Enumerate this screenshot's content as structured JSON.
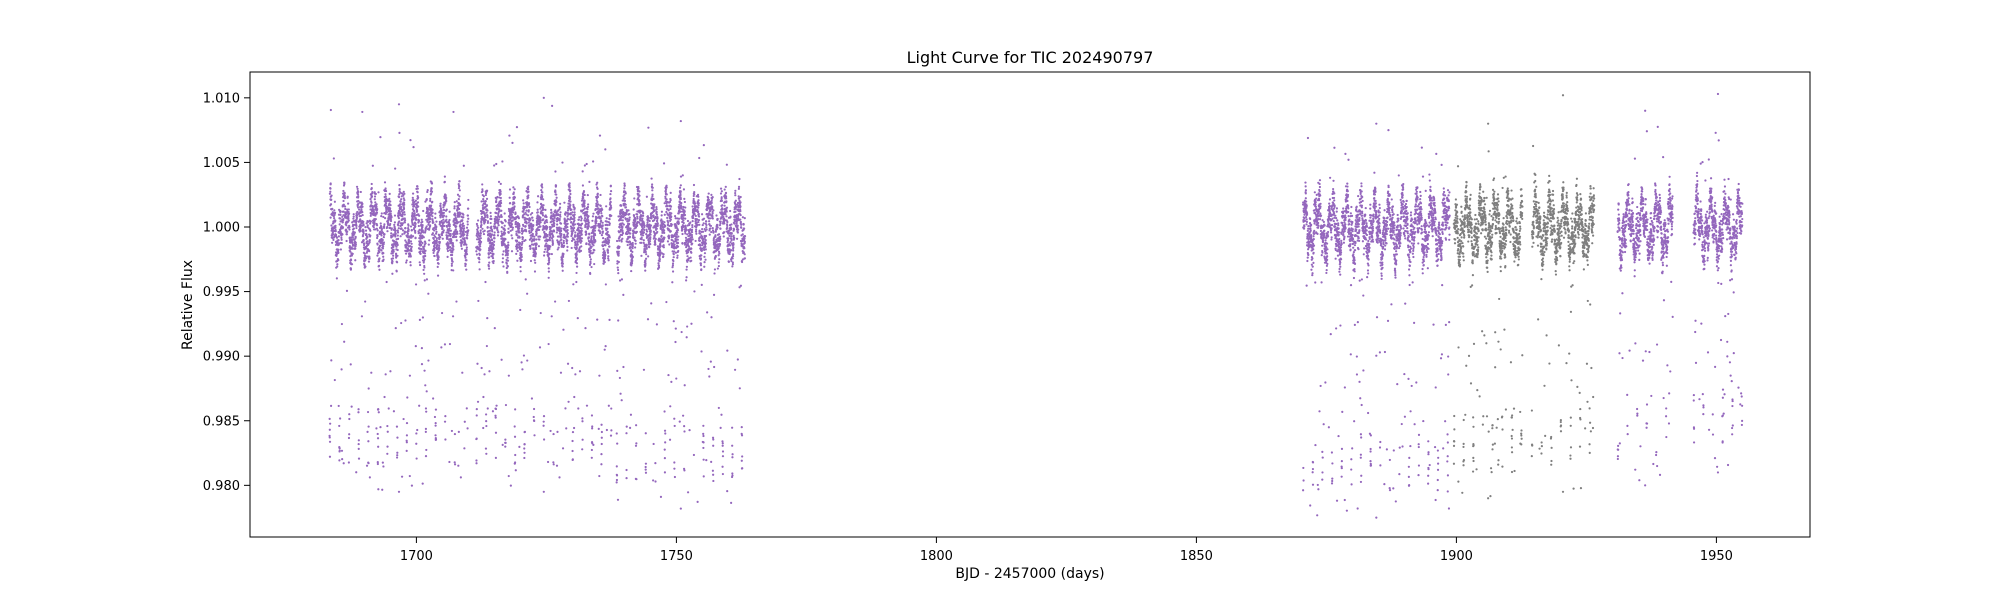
{
  "chart_data": {
    "type": "scatter",
    "title": "Light Curve for TIC 202490797",
    "xlabel": "BJD - 2457000 (days)",
    "ylabel": "Relative Flux",
    "xlim": [
      1668,
      1968
    ],
    "ylim": [
      0.976,
      1.012
    ],
    "xticks": [
      1700,
      1750,
      1800,
      1850,
      1900,
      1950
    ],
    "yticks": [
      0.98,
      0.985,
      0.99,
      0.995,
      1.0,
      1.005,
      1.01
    ],
    "xtick_labels": [
      "1700",
      "1750",
      "1800",
      "1850",
      "1900",
      "1950"
    ],
    "ytick_labels": [
      "0.980",
      "0.985",
      "0.990",
      "0.995",
      "1.000",
      "1.005",
      "1.010"
    ],
    "grid": false,
    "series": [
      {
        "color": "#9467bd",
        "segments": [
          {
            "x_start": 1683.3,
            "x_end": 1710.0,
            "flux_center": 1.0,
            "flux_max": 1.0095,
            "flux_min": 0.9795
          },
          {
            "x_start": 1711.5,
            "x_end": 1737.5,
            "flux_center": 1.0,
            "flux_max": 1.01,
            "flux_min": 0.9795
          },
          {
            "x_start": 1738.5,
            "x_end": 1763.2,
            "flux_center": 1.0,
            "flux_max": 1.0082,
            "flux_min": 0.9782
          },
          {
            "x_start": 1870.5,
            "x_end": 1898.7,
            "flux_center": 1.0,
            "flux_max": 1.008,
            "flux_min": 0.9775
          },
          {
            "x_start": 1931.0,
            "x_end": 1941.6,
            "flux_center": 1.0,
            "flux_max": 1.009,
            "flux_min": 0.98
          },
          {
            "x_start": 1945.6,
            "x_end": 1955.0,
            "flux_center": 1.0,
            "flux_max": 1.0103,
            "flux_min": 0.981
          }
        ]
      },
      {
        "color": "#7f7f7f",
        "segments": [
          {
            "x_start": 1899.5,
            "x_end": 1912.7,
            "flux_center": 1.0,
            "flux_max": 1.008,
            "flux_min": 0.979
          },
          {
            "x_start": 1914.5,
            "x_end": 1926.5,
            "flux_center": 1.0,
            "flux_max": 1.0102,
            "flux_min": 0.9795
          }
        ]
      }
    ]
  }
}
